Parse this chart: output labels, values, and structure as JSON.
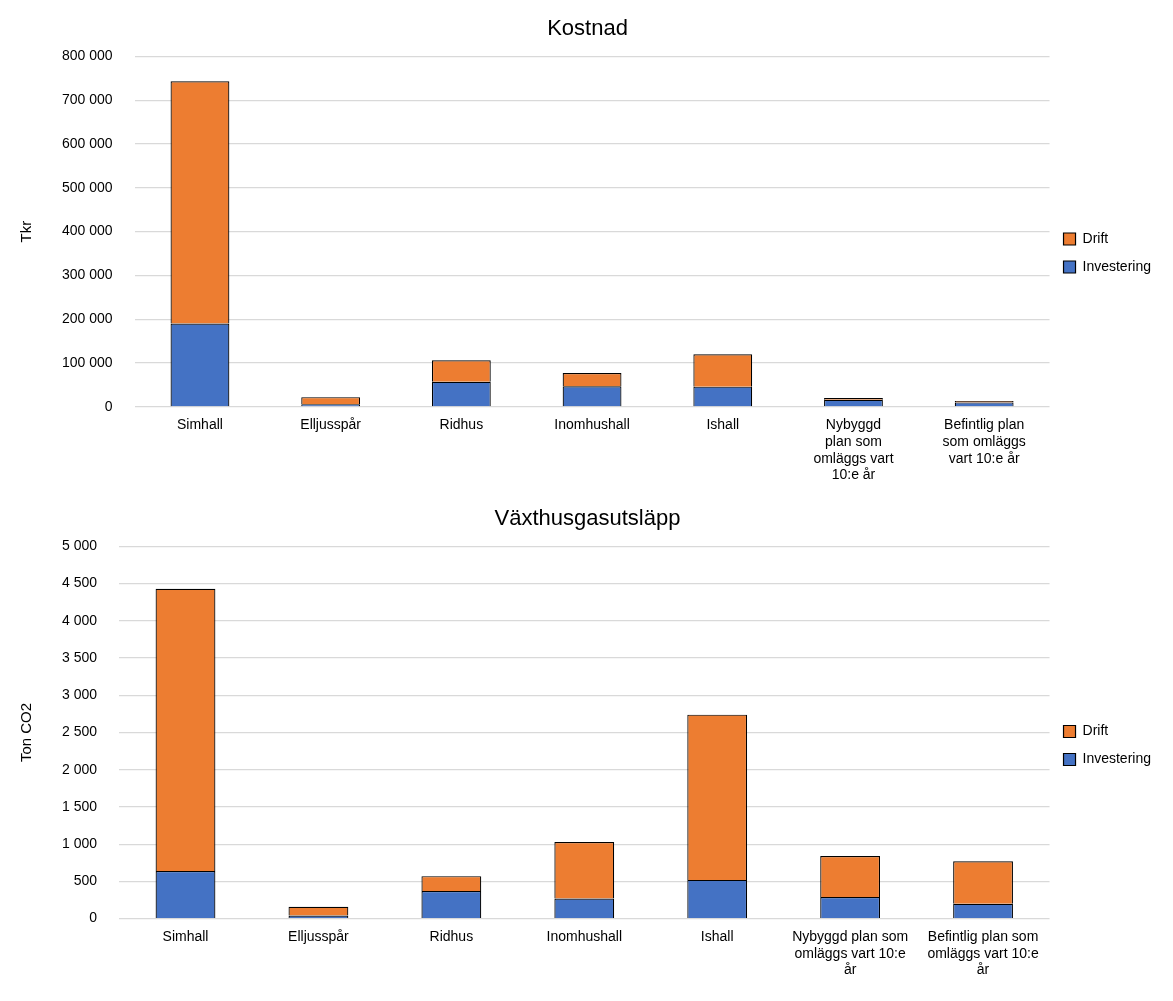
{
  "chart_data": [
    {
      "type": "bar",
      "title": "Kostnad",
      "ylabel": "Tkr",
      "stacked": true,
      "grid": "y",
      "legend": "right",
      "categories": [
        "Simhall",
        "Elljusspår",
        "Ridhus",
        "Inomhushall",
        "Ishall",
        "Nybyggd plan som omläggs vart 10:e år",
        "Befintlig plan som omläggs vart 10:e år"
      ],
      "series": [
        {
          "name": "Investering",
          "color": "#4472c4",
          "values": [
            190000,
            6000,
            57000,
            47000,
            46000,
            16000,
            10000
          ]
        },
        {
          "name": "Drift",
          "color": "#ed7d31",
          "values": [
            553000,
            16000,
            49000,
            30000,
            74000,
            4000,
            3000
          ]
        }
      ],
      "ylim": [
        0,
        800000
      ],
      "yticks": [
        {
          "value": 0,
          "label": "0"
        },
        {
          "value": 100000,
          "label": "100 000"
        },
        {
          "value": 200000,
          "label": "200 000"
        },
        {
          "value": 300000,
          "label": "300 000"
        },
        {
          "value": 400000,
          "label": "400 000"
        },
        {
          "value": 500000,
          "label": "500 000"
        },
        {
          "value": 600000,
          "label": "600 000"
        },
        {
          "value": 700000,
          "label": "700 000"
        },
        {
          "value": 800000,
          "label": "800 000"
        }
      ]
    },
    {
      "type": "bar",
      "title": "Växthusgasutsläpp",
      "ylabel": "Ton CO2",
      "stacked": true,
      "grid": "y",
      "legend": "right",
      "categories": [
        "Simhall",
        "Elljusspår",
        "Ridhus",
        "Inomhushall",
        "Ishall",
        "Nybyggd plan som omläggs vart 10:e år",
        "Befintlig plan som omläggs vart 10:e år"
      ],
      "series": [
        {
          "name": "Investering",
          "color": "#4472c4",
          "values": [
            640,
            40,
            370,
            270,
            520,
            290,
            200
          ]
        },
        {
          "name": "Drift",
          "color": "#ed7d31",
          "values": [
            3790,
            120,
            200,
            760,
            2220,
            550,
            570
          ]
        }
      ],
      "ylim": [
        0,
        5000
      ],
      "yticks": [
        {
          "value": 0,
          "label": "0"
        },
        {
          "value": 500,
          "label": "500"
        },
        {
          "value": 1000,
          "label": "1 000"
        },
        {
          "value": 1500,
          "label": "1 500"
        },
        {
          "value": 2000,
          "label": "2 000"
        },
        {
          "value": 2500,
          "label": "2 500"
        },
        {
          "value": 3000,
          "label": "3 000"
        },
        {
          "value": 3500,
          "label": "3 500"
        },
        {
          "value": 4000,
          "label": "4 000"
        },
        {
          "value": 4500,
          "label": "4 500"
        },
        {
          "value": 5000,
          "label": "5 000"
        }
      ]
    }
  ]
}
